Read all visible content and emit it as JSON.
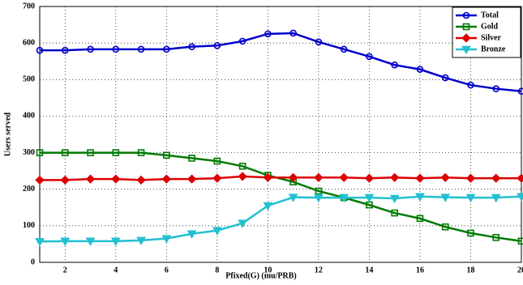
{
  "chart_data": {
    "type": "line",
    "xlabel": "Pfixed(G) (mu/PRB)",
    "ylabel": "Users served",
    "x": [
      1,
      2,
      3,
      4,
      5,
      6,
      7,
      8,
      9,
      10,
      11,
      12,
      13,
      14,
      15,
      16,
      17,
      18,
      19,
      20
    ],
    "series": [
      {
        "name": "Total",
        "color": "#0000cc",
        "marker": "circle",
        "values": [
          580,
          580,
          583,
          583,
          583,
          583,
          590,
          593,
          605,
          625,
          627,
          603,
          583,
          563,
          540,
          528,
          505,
          485,
          475,
          468
        ]
      },
      {
        "name": "Gold",
        "color": "#007a00",
        "marker": "square",
        "values": [
          300,
          300,
          300,
          300,
          300,
          293,
          285,
          277,
          263,
          238,
          220,
          195,
          177,
          157,
          135,
          120,
          97,
          80,
          68,
          58
        ]
      },
      {
        "name": "Silver",
        "color": "#dd0000",
        "marker": "diamond",
        "values": [
          225,
          225,
          228,
          228,
          225,
          228,
          228,
          230,
          235,
          232,
          232,
          232,
          232,
          230,
          232,
          230,
          232,
          230,
          230,
          230
        ]
      },
      {
        "name": "Bronze",
        "color": "#22c0d0",
        "marker": "triangle-down",
        "values": [
          57,
          58,
          58,
          58,
          60,
          65,
          78,
          87,
          107,
          155,
          178,
          177,
          177,
          177,
          175,
          180,
          178,
          177,
          177,
          180
        ]
      }
    ],
    "xlim": [
      1,
      20
    ],
    "xticks": [
      2,
      4,
      6,
      8,
      10,
      12,
      14,
      16,
      18,
      20
    ],
    "ylim": [
      0,
      700
    ],
    "yticks": [
      0,
      100,
      200,
      300,
      400,
      500,
      600,
      700
    ],
    "grid": true,
    "legend": "upper right"
  }
}
